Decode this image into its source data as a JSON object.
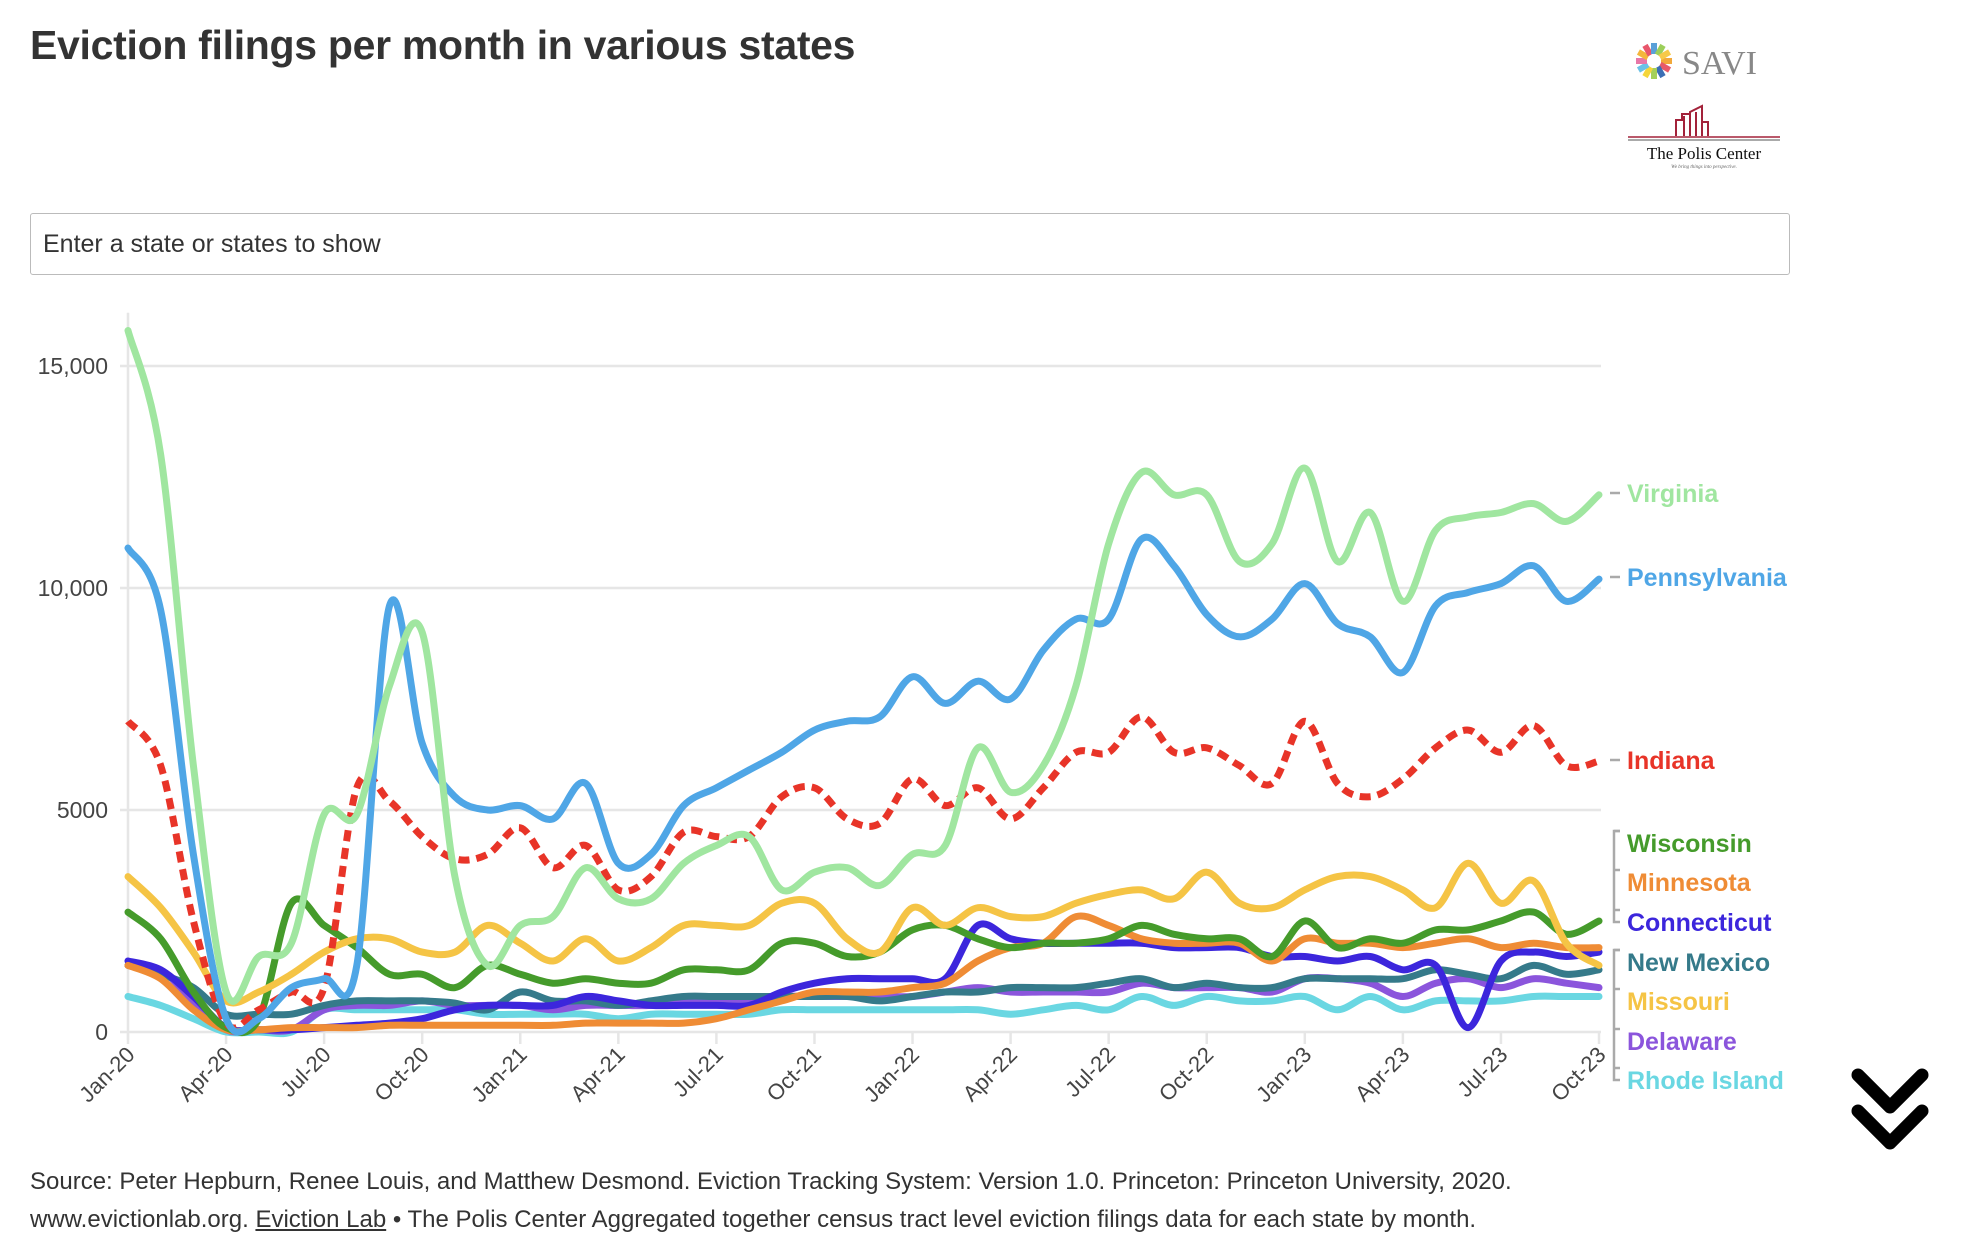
{
  "title": "Eviction filings per month in various states",
  "logos": {
    "savi": "SAVI",
    "polis": "The Polis Center",
    "polis_tagline": "We bring things into perspective."
  },
  "search": {
    "placeholder": "Enter a state or states to show",
    "value": ""
  },
  "footer": {
    "line1": "Source: Peter Hepburn, Renee Louis, and Matthew Desmond. Eviction Tracking System: Version 1.0. Princeton: Princeton University, 2020.",
    "line2_prefix": "www.evictionlab.org. ",
    "link": "Eviction Lab",
    "line2_suffix": " • The Polis Center Aggregated together census tract level eviction filings data for each state by month."
  },
  "scroll_icon": "double-chevron-down-icon",
  "chart_data": {
    "type": "line",
    "title": "Eviction filings per month in various states",
    "xlabel": "",
    "ylabel": "",
    "ylim": [
      0,
      16000
    ],
    "yticks": [
      0,
      5000,
      10000,
      15000
    ],
    "ytick_labels": [
      "0",
      "5000",
      "10,000",
      "15,000"
    ],
    "grid": true,
    "legend": "right (direct labels)",
    "x": [
      "Jan-20",
      "Feb-20",
      "Mar-20",
      "Apr-20",
      "May-20",
      "Jun-20",
      "Jul-20",
      "Aug-20",
      "Sep-20",
      "Oct-20",
      "Nov-20",
      "Dec-20",
      "Jan-21",
      "Feb-21",
      "Mar-21",
      "Apr-21",
      "May-21",
      "Jun-21",
      "Jul-21",
      "Aug-21",
      "Sep-21",
      "Oct-21",
      "Nov-21",
      "Dec-21",
      "Jan-22",
      "Feb-22",
      "Mar-22",
      "Apr-22",
      "May-22",
      "Jun-22",
      "Jul-22",
      "Aug-22",
      "Sep-22",
      "Oct-22",
      "Nov-22",
      "Dec-22",
      "Jan-23",
      "Feb-23",
      "Mar-23",
      "Apr-23",
      "May-23",
      "Jun-23",
      "Jul-23",
      "Aug-23",
      "Sep-23",
      "Oct-23"
    ],
    "xtick_labels": [
      "Jan-20",
      "Apr-20",
      "Jul-20",
      "Oct-20",
      "Jan-21",
      "Apr-21",
      "Jul-21",
      "Oct-21",
      "Jan-22",
      "Apr-22",
      "Jul-22",
      "Oct-22",
      "Jan-23",
      "Apr-23",
      "Jul-23",
      "Oct-23"
    ],
    "series": [
      {
        "name": "Rhode Island",
        "color": "#6ad7e2",
        "dashed": false,
        "values": [
          800,
          600,
          300,
          0,
          0,
          0,
          500,
          500,
          500,
          500,
          500,
          400,
          400,
          400,
          400,
          300,
          400,
          400,
          400,
          400,
          500,
          500,
          500,
          500,
          500,
          500,
          500,
          400,
          500,
          600,
          500,
          800,
          600,
          800,
          700,
          700,
          800,
          500,
          800,
          500,
          700,
          700,
          700,
          800,
          800,
          800
        ]
      },
      {
        "name": "Delaware",
        "color": "#8b55dc",
        "dashed": false,
        "values": [
          1500,
          1400,
          700,
          50,
          50,
          50,
          500,
          600,
          600,
          700,
          600,
          600,
          600,
          500,
          600,
          600,
          600,
          700,
          700,
          700,
          800,
          800,
          800,
          800,
          800,
          900,
          1000,
          900,
          900,
          900,
          900,
          1100,
          1000,
          1000,
          1000,
          900,
          1200,
          1200,
          1100,
          800,
          1100,
          1200,
          1000,
          1200,
          1100,
          1000
        ]
      },
      {
        "name": "New Mexico",
        "color": "#357a8a",
        "dashed": false,
        "values": [
          1500,
          1300,
          1000,
          400,
          400,
          400,
          600,
          700,
          700,
          700,
          650,
          500,
          900,
          700,
          700,
          600,
          700,
          800,
          800,
          800,
          800,
          800,
          800,
          700,
          800,
          900,
          900,
          1000,
          1000,
          1000,
          1100,
          1200,
          1000,
          1100,
          1000,
          1000,
          1200,
          1200,
          1200,
          1200,
          1400,
          1300,
          1200,
          1500,
          1300,
          1400
        ]
      },
      {
        "name": "Connecticut",
        "color": "#3c26dc",
        "dashed": false,
        "values": [
          1600,
          1400,
          800,
          100,
          50,
          50,
          100,
          150,
          200,
          300,
          500,
          600,
          600,
          600,
          800,
          700,
          600,
          600,
          600,
          600,
          900,
          1100,
          1200,
          1200,
          1200,
          1200,
          2400,
          2100,
          2000,
          2000,
          2000,
          2000,
          1900,
          1900,
          1900,
          1700,
          1700,
          1600,
          1700,
          1400,
          1500,
          100,
          1600,
          1800,
          1700,
          1800
        ]
      },
      {
        "name": "Minnesota",
        "color": "#ef8c35",
        "dashed": false,
        "values": [
          1500,
          1200,
          500,
          50,
          50,
          100,
          100,
          100,
          150,
          150,
          150,
          150,
          150,
          150,
          200,
          200,
          200,
          200,
          300,
          500,
          700,
          900,
          900,
          900,
          1000,
          1100,
          1600,
          1900,
          2000,
          2600,
          2400,
          2100,
          2000,
          2000,
          2000,
          1600,
          2100,
          2000,
          2000,
          1900,
          2000,
          2100,
          1900,
          2000,
          1900,
          1900
        ]
      },
      {
        "name": "Wisconsin",
        "color": "#459b2b",
        "dashed": false,
        "values": [
          2700,
          2100,
          900,
          100,
          300,
          2900,
          2400,
          1900,
          1300,
          1300,
          1000,
          1500,
          1300,
          1100,
          1200,
          1100,
          1100,
          1400,
          1400,
          1400,
          2000,
          2000,
          1700,
          1800,
          2300,
          2400,
          2100,
          1900,
          2000,
          2000,
          2100,
          2400,
          2200,
          2100,
          2100,
          1700,
          2500,
          1900,
          2100,
          2000,
          2300,
          2300,
          2500,
          2700,
          2200,
          2500
        ]
      },
      {
        "name": "Missouri",
        "color": "#f5c445",
        "dashed": false,
        "values": [
          3500,
          2800,
          1800,
          700,
          900,
          1300,
          1800,
          2100,
          2100,
          1800,
          1800,
          2400,
          2000,
          1600,
          2100,
          1600,
          1900,
          2400,
          2400,
          2400,
          2900,
          2900,
          2100,
          1800,
          2800,
          2400,
          2800,
          2600,
          2600,
          2900,
          3100,
          3200,
          3000,
          3600,
          2900,
          2800,
          3200,
          3500,
          3500,
          3200,
          2800,
          3800,
          2900,
          3400,
          2000,
          1500
        ]
      },
      {
        "name": "Indiana",
        "color": "#e83428",
        "dashed": true,
        "values": [
          7000,
          6000,
          2500,
          200,
          500,
          900,
          1000,
          5500,
          5200,
          4400,
          3900,
          4000,
          4600,
          3700,
          4200,
          3200,
          3500,
          4500,
          4400,
          4400,
          5300,
          5500,
          4800,
          4700,
          5700,
          5100,
          5500,
          4800,
          5500,
          6300,
          6300,
          7100,
          6300,
          6400,
          6000,
          5600,
          7000,
          5600,
          5300,
          5700,
          6400,
          6800,
          6300,
          6900,
          6000,
          6100
        ]
      },
      {
        "name": "Pennsylvania",
        "color": "#4fa6e6",
        "dashed": false,
        "values": [
          10900,
          9500,
          4000,
          300,
          300,
          1000,
          1200,
          1500,
          9600,
          6500,
          5300,
          5000,
          5100,
          4800,
          5600,
          3800,
          4000,
          5100,
          5500,
          5900,
          6300,
          6800,
          7000,
          7100,
          8000,
          7400,
          7900,
          7500,
          8600,
          9300,
          9300,
          11100,
          10500,
          9400,
          8900,
          9300,
          10100,
          9200,
          8900,
          8100,
          9600,
          9900,
          10100,
          10500,
          9700,
          10200
        ]
      },
      {
        "name": "Virginia",
        "color": "#a0e6a0",
        "dashed": false,
        "values": [
          15800,
          13000,
          6000,
          900,
          1700,
          2000,
          4900,
          4900,
          7800,
          9000,
          3500,
          1500,
          2400,
          2600,
          3700,
          3000,
          3000,
          3800,
          4200,
          4400,
          3200,
          3600,
          3700,
          3300,
          4000,
          4200,
          6400,
          5400,
          6000,
          7800,
          11000,
          12600,
          12100,
          12100,
          10600,
          11000,
          12700,
          10600,
          11700,
          9700,
          11300,
          11600,
          11700,
          11900,
          11500,
          12100
        ]
      }
    ],
    "legend_order": [
      "Virginia",
      "Pennsylvania",
      "Indiana",
      "Wisconsin",
      "Minnesota",
      "Connecticut",
      "New Mexico",
      "Missouri",
      "Delaware",
      "Rhode Island"
    ]
  }
}
